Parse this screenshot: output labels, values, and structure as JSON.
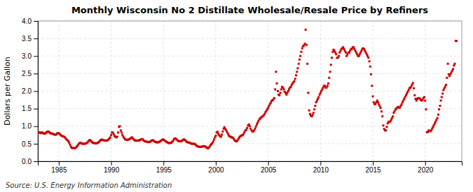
{
  "chart_data": {
    "type": "scatter",
    "title": "Monthly Wisconsin No 2 Distillate Wholesale/Resale Price by Refiners",
    "ylabel": "Dollars per Gallon",
    "annotations": [
      "Source: U.S. Energy Information Administration"
    ],
    "color": "#cc0000",
    "marker": "square",
    "grid": true,
    "xlim": [
      1983.0,
      2023.5
    ],
    "ylim": [
      0.0,
      4.0
    ],
    "xticks": [
      1985,
      1990,
      1995,
      2000,
      2005,
      2010,
      2015,
      2020
    ],
    "yticks": [
      {
        "value": 0.0,
        "label": "0.0"
      },
      0.5,
      {
        "value": 1.0,
        "label": "1.0"
      },
      1.5,
      {
        "value": 2.0,
        "label": "2.0"
      },
      2.5,
      {
        "value": 3.0,
        "label": "3.0"
      },
      3.5,
      {
        "value": 4.0,
        "label": "4.0"
      }
    ],
    "x": [
      1983.08,
      1983.17,
      1983.25,
      1983.33,
      1983.42,
      1983.5,
      1983.58,
      1983.67,
      1983.75,
      1983.83,
      1983.92,
      1984.0,
      1984.08,
      1984.17,
      1984.25,
      1984.33,
      1984.42,
      1984.5,
      1984.58,
      1984.67,
      1984.75,
      1984.83,
      1984.92,
      1985.0,
      1985.08,
      1985.17,
      1985.25,
      1985.33,
      1985.42,
      1985.5,
      1985.58,
      1985.67,
      1985.75,
      1985.83,
      1985.92,
      1986.0,
      1986.08,
      1986.17,
      1986.25,
      1986.33,
      1986.42,
      1986.5,
      1986.58,
      1986.67,
      1986.75,
      1986.83,
      1986.92,
      1987.0,
      1987.08,
      1987.17,
      1987.25,
      1987.33,
      1987.42,
      1987.5,
      1987.58,
      1987.67,
      1987.75,
      1987.83,
      1987.92,
      1988.0,
      1988.08,
      1988.17,
      1988.25,
      1988.33,
      1988.42,
      1988.5,
      1988.58,
      1988.67,
      1988.75,
      1988.83,
      1988.92,
      1989.0,
      1989.08,
      1989.17,
      1989.25,
      1989.33,
      1989.42,
      1989.5,
      1989.58,
      1989.67,
      1989.75,
      1989.83,
      1989.92,
      1990.0,
      1990.08,
      1990.17,
      1990.25,
      1990.33,
      1990.42,
      1990.5,
      1990.58,
      1990.67,
      1990.75,
      1990.83,
      1990.92,
      1991.0,
      1991.08,
      1991.17,
      1991.25,
      1991.33,
      1991.42,
      1991.5,
      1991.58,
      1991.67,
      1991.75,
      1991.83,
      1991.92,
      1992.0,
      1992.08,
      1992.17,
      1992.25,
      1992.33,
      1992.42,
      1992.5,
      1992.58,
      1992.67,
      1992.75,
      1992.83,
      1992.92,
      1993.0,
      1993.08,
      1993.17,
      1993.25,
      1993.33,
      1993.42,
      1993.5,
      1993.58,
      1993.67,
      1993.75,
      1993.83,
      1993.92,
      1994.0,
      1994.08,
      1994.17,
      1994.25,
      1994.33,
      1994.42,
      1994.5,
      1994.58,
      1994.67,
      1994.75,
      1994.83,
      1994.92,
      1995.0,
      1995.08,
      1995.17,
      1995.25,
      1995.33,
      1995.42,
      1995.5,
      1995.58,
      1995.67,
      1995.75,
      1995.83,
      1995.92,
      1996.0,
      1996.08,
      1996.17,
      1996.25,
      1996.33,
      1996.42,
      1996.5,
      1996.58,
      1996.67,
      1996.75,
      1996.83,
      1996.92,
      1997.0,
      1997.08,
      1997.17,
      1997.25,
      1997.33,
      1997.42,
      1997.5,
      1997.58,
      1997.67,
      1997.75,
      1997.83,
      1997.92,
      1998.0,
      1998.08,
      1998.17,
      1998.25,
      1998.33,
      1998.42,
      1998.5,
      1998.58,
      1998.67,
      1998.75,
      1998.83,
      1998.92,
      1999.0,
      1999.08,
      1999.17,
      1999.25,
      1999.33,
      1999.42,
      1999.5,
      1999.58,
      1999.67,
      1999.75,
      1999.83,
      1999.92,
      2000.0,
      2000.08,
      2000.17,
      2000.25,
      2000.33,
      2000.42,
      2000.5,
      2000.58,
      2000.67,
      2000.75,
      2000.83,
      2000.92,
      2001.0,
      2001.08,
      2001.17,
      2001.25,
      2001.33,
      2001.42,
      2001.5,
      2001.58,
      2001.67,
      2001.75,
      2001.83,
      2001.92,
      2002.0,
      2002.08,
      2002.17,
      2002.25,
      2002.33,
      2002.42,
      2002.5,
      2002.58,
      2002.67,
      2002.75,
      2002.83,
      2002.92,
      2003.0,
      2003.08,
      2003.17,
      2003.25,
      2003.33,
      2003.42,
      2003.5,
      2003.58,
      2003.67,
      2003.75,
      2003.83,
      2003.92,
      2004.0,
      2004.08,
      2004.17,
      2004.25,
      2004.33,
      2004.42,
      2004.5,
      2004.58,
      2004.67,
      2004.75,
      2004.83,
      2004.92,
      2005.0,
      2005.08,
      2005.17,
      2005.25,
      2005.33,
      2005.42,
      2005.5,
      2005.58,
      2005.67,
      2005.75,
      2005.83,
      2005.92,
      2006.0,
      2006.08,
      2006.17,
      2006.25,
      2006.33,
      2006.42,
      2006.5,
      2006.58,
      2006.67,
      2006.75,
      2006.83,
      2006.92,
      2007.0,
      2007.08,
      2007.17,
      2007.25,
      2007.33,
      2007.42,
      2007.5,
      2007.58,
      2007.67,
      2007.75,
      2007.83,
      2007.92,
      2008.0,
      2008.08,
      2008.17,
      2008.25,
      2008.33,
      2008.42,
      2008.5,
      2008.58,
      2008.67,
      2008.75,
      2008.83,
      2008.92,
      2009.0,
      2009.08,
      2009.17,
      2009.25,
      2009.33,
      2009.42,
      2009.5,
      2009.58,
      2009.67,
      2009.75,
      2009.83,
      2009.92,
      2010.0,
      2010.08,
      2010.17,
      2010.25,
      2010.33,
      2010.42,
      2010.5,
      2010.58,
      2010.67,
      2010.75,
      2010.83,
      2010.92,
      2011.0,
      2011.08,
      2011.17,
      2011.25,
      2011.33,
      2011.42,
      2011.5,
      2011.58,
      2011.67,
      2011.75,
      2011.83,
      2011.92,
      2012.0,
      2012.08,
      2012.17,
      2012.25,
      2012.33,
      2012.42,
      2012.5,
      2012.58,
      2012.67,
      2012.75,
      2012.83,
      2012.92,
      2013.0,
      2013.08,
      2013.17,
      2013.25,
      2013.33,
      2013.42,
      2013.5,
      2013.58,
      2013.67,
      2013.75,
      2013.83,
      2013.92,
      2014.0,
      2014.08,
      2014.17,
      2014.25,
      2014.33,
      2014.42,
      2014.5,
      2014.58,
      2014.67,
      2014.75,
      2014.83,
      2014.92,
      2015.0,
      2015.08,
      2015.17,
      2015.25,
      2015.33,
      2015.42,
      2015.5,
      2015.58,
      2015.67,
      2015.75,
      2015.83,
      2015.92,
      2016.0,
      2016.08,
      2016.17,
      2016.25,
      2016.33,
      2016.42,
      2016.5,
      2016.58,
      2016.67,
      2016.75,
      2016.83,
      2016.92,
      2017.0,
      2017.08,
      2017.17,
      2017.25,
      2017.33,
      2017.42,
      2017.5,
      2017.58,
      2017.67,
      2017.75,
      2017.83,
      2017.92,
      2018.0,
      2018.08,
      2018.17,
      2018.25,
      2018.33,
      2018.42,
      2018.5,
      2018.58,
      2018.67,
      2018.75,
      2018.83,
      2018.92,
      2019.0,
      2019.08,
      2019.17,
      2019.25,
      2019.33,
      2019.42,
      2019.5,
      2019.58,
      2019.67,
      2019.75,
      2019.83,
      2019.92,
      2020.0,
      2020.08,
      2020.17,
      2020.25,
      2020.33,
      2020.42,
      2020.5,
      2020.58,
      2020.67,
      2020.75,
      2020.83,
      2020.92,
      2021.0,
      2021.08,
      2021.17,
      2021.25,
      2021.33,
      2021.42,
      2021.5,
      2021.58,
      2021.67,
      2021.75,
      2021.83,
      2021.92,
      2022.0,
      2022.08,
      2022.17,
      2022.25,
      2022.33,
      2022.42,
      2022.5,
      2022.58,
      2022.67,
      2022.75,
      2022.83,
      2022.92,
      2023.0
    ],
    "values": [
      0.83,
      0.82,
      0.8,
      0.82,
      0.82,
      0.8,
      0.79,
      0.79,
      0.8,
      0.83,
      0.84,
      0.85,
      0.83,
      0.81,
      0.79,
      0.79,
      0.79,
      0.77,
      0.76,
      0.76,
      0.76,
      0.79,
      0.8,
      0.8,
      0.78,
      0.75,
      0.73,
      0.72,
      0.71,
      0.7,
      0.68,
      0.65,
      0.62,
      0.6,
      0.57,
      0.53,
      0.47,
      0.41,
      0.38,
      0.38,
      0.37,
      0.37,
      0.38,
      0.4,
      0.43,
      0.46,
      0.5,
      0.52,
      0.53,
      0.51,
      0.5,
      0.5,
      0.5,
      0.5,
      0.51,
      0.52,
      0.54,
      0.57,
      0.6,
      0.6,
      0.58,
      0.55,
      0.53,
      0.52,
      0.52,
      0.51,
      0.51,
      0.52,
      0.53,
      0.55,
      0.58,
      0.6,
      0.62,
      0.61,
      0.6,
      0.6,
      0.59,
      0.59,
      0.59,
      0.6,
      0.62,
      0.65,
      0.68,
      0.75,
      0.82,
      0.82,
      0.77,
      0.72,
      0.7,
      0.68,
      0.7,
      0.82,
      0.98,
      1.0,
      0.88,
      0.82,
      0.75,
      0.7,
      0.66,
      0.63,
      0.62,
      0.61,
      0.61,
      0.62,
      0.63,
      0.65,
      0.67,
      0.68,
      0.65,
      0.62,
      0.6,
      0.59,
      0.59,
      0.59,
      0.59,
      0.6,
      0.6,
      0.62,
      0.63,
      0.63,
      0.6,
      0.58,
      0.57,
      0.56,
      0.56,
      0.55,
      0.55,
      0.55,
      0.56,
      0.58,
      0.6,
      0.6,
      0.58,
      0.56,
      0.55,
      0.54,
      0.54,
      0.54,
      0.55,
      0.57,
      0.58,
      0.6,
      0.62,
      0.62,
      0.6,
      0.58,
      0.56,
      0.55,
      0.53,
      0.52,
      0.52,
      0.52,
      0.53,
      0.56,
      0.58,
      0.63,
      0.65,
      0.65,
      0.62,
      0.6,
      0.58,
      0.57,
      0.57,
      0.57,
      0.58,
      0.6,
      0.62,
      0.62,
      0.6,
      0.57,
      0.55,
      0.54,
      0.53,
      0.53,
      0.52,
      0.5,
      0.5,
      0.5,
      0.5,
      0.49,
      0.47,
      0.44,
      0.43,
      0.42,
      0.41,
      0.41,
      0.41,
      0.42,
      0.42,
      0.43,
      0.43,
      0.42,
      0.4,
      0.38,
      0.37,
      0.39,
      0.42,
      0.46,
      0.49,
      0.52,
      0.56,
      0.62,
      0.68,
      0.73,
      0.82,
      0.84,
      0.78,
      0.74,
      0.71,
      0.7,
      0.76,
      0.85,
      0.93,
      0.97,
      0.92,
      0.88,
      0.83,
      0.78,
      0.73,
      0.71,
      0.7,
      0.68,
      0.68,
      0.66,
      0.62,
      0.59,
      0.57,
      0.57,
      0.6,
      0.64,
      0.68,
      0.71,
      0.73,
      0.74,
      0.75,
      0.79,
      0.84,
      0.88,
      0.9,
      0.95,
      1.02,
      1.05,
      1.0,
      0.93,
      0.88,
      0.85,
      0.85,
      0.88,
      0.93,
      0.99,
      1.05,
      1.1,
      1.15,
      1.2,
      1.22,
      1.25,
      1.27,
      1.29,
      1.31,
      1.35,
      1.4,
      1.44,
      1.48,
      1.52,
      1.58,
      1.63,
      1.67,
      1.72,
      1.74,
      1.76,
      1.8,
      2.05,
      2.55,
      2.22,
      2.0,
      1.9,
      1.88,
      1.95,
      2.05,
      2.12,
      2.1,
      2.05,
      1.98,
      1.95,
      1.9,
      1.95,
      2.0,
      2.05,
      2.1,
      2.12,
      2.18,
      2.22,
      2.25,
      2.28,
      2.35,
      2.45,
      2.55,
      2.65,
      2.78,
      2.9,
      3.0,
      3.12,
      3.22,
      3.28,
      3.3,
      3.35,
      3.75,
      3.32,
      2.78,
      1.95,
      1.45,
      1.35,
      1.3,
      1.28,
      1.32,
      1.38,
      1.48,
      1.58,
      1.68,
      1.73,
      1.78,
      1.83,
      1.9,
      1.95,
      2.0,
      2.05,
      2.1,
      2.15,
      2.15,
      2.1,
      2.1,
      2.15,
      2.22,
      2.38,
      2.55,
      2.75,
      2.95,
      3.12,
      3.18,
      3.15,
      3.1,
      3.05,
      2.95,
      2.95,
      3.0,
      3.1,
      3.15,
      3.2,
      3.22,
      3.25,
      3.2,
      3.15,
      3.1,
      3.0,
      3.05,
      3.1,
      3.1,
      3.15,
      3.2,
      3.2,
      3.25,
      3.25,
      3.2,
      3.15,
      3.1,
      3.05,
      3.0,
      3.0,
      3.05,
      3.1,
      3.15,
      3.2,
      3.22,
      3.2,
      3.15,
      3.1,
      3.05,
      3.0,
      2.95,
      2.85,
      2.7,
      2.48,
      2.15,
      1.85,
      1.68,
      1.63,
      1.63,
      1.68,
      1.73,
      1.68,
      1.62,
      1.57,
      1.52,
      1.42,
      1.28,
      1.02,
      0.92,
      0.88,
      0.88,
      0.98,
      1.08,
      1.12,
      1.13,
      1.13,
      1.18,
      1.23,
      1.28,
      1.38,
      1.43,
      1.48,
      1.5,
      1.53,
      1.55,
      1.53,
      1.53,
      1.58,
      1.62,
      1.68,
      1.73,
      1.78,
      1.83,
      1.88,
      1.93,
      1.98,
      2.03,
      2.08,
      2.1,
      2.13,
      2.18,
      2.23,
      2.08,
      1.88,
      1.78,
      1.73,
      1.78,
      1.8,
      1.8,
      1.78,
      1.75,
      1.73,
      1.75,
      1.8,
      1.83,
      1.73,
      1.48,
      0.83,
      0.83,
      0.88,
      0.86,
      0.86,
      0.88,
      0.93,
      0.98,
      1.03,
      1.08,
      1.13,
      1.18,
      1.23,
      1.33,
      1.48,
      1.58,
      1.73,
      1.83,
      1.93,
      2.03,
      2.08,
      2.13,
      2.18,
      2.38,
      2.78,
      2.48,
      2.43,
      2.48,
      2.53,
      2.58,
      2.63,
      2.73,
      2.78,
      3.43,
      3.43
    ]
  }
}
